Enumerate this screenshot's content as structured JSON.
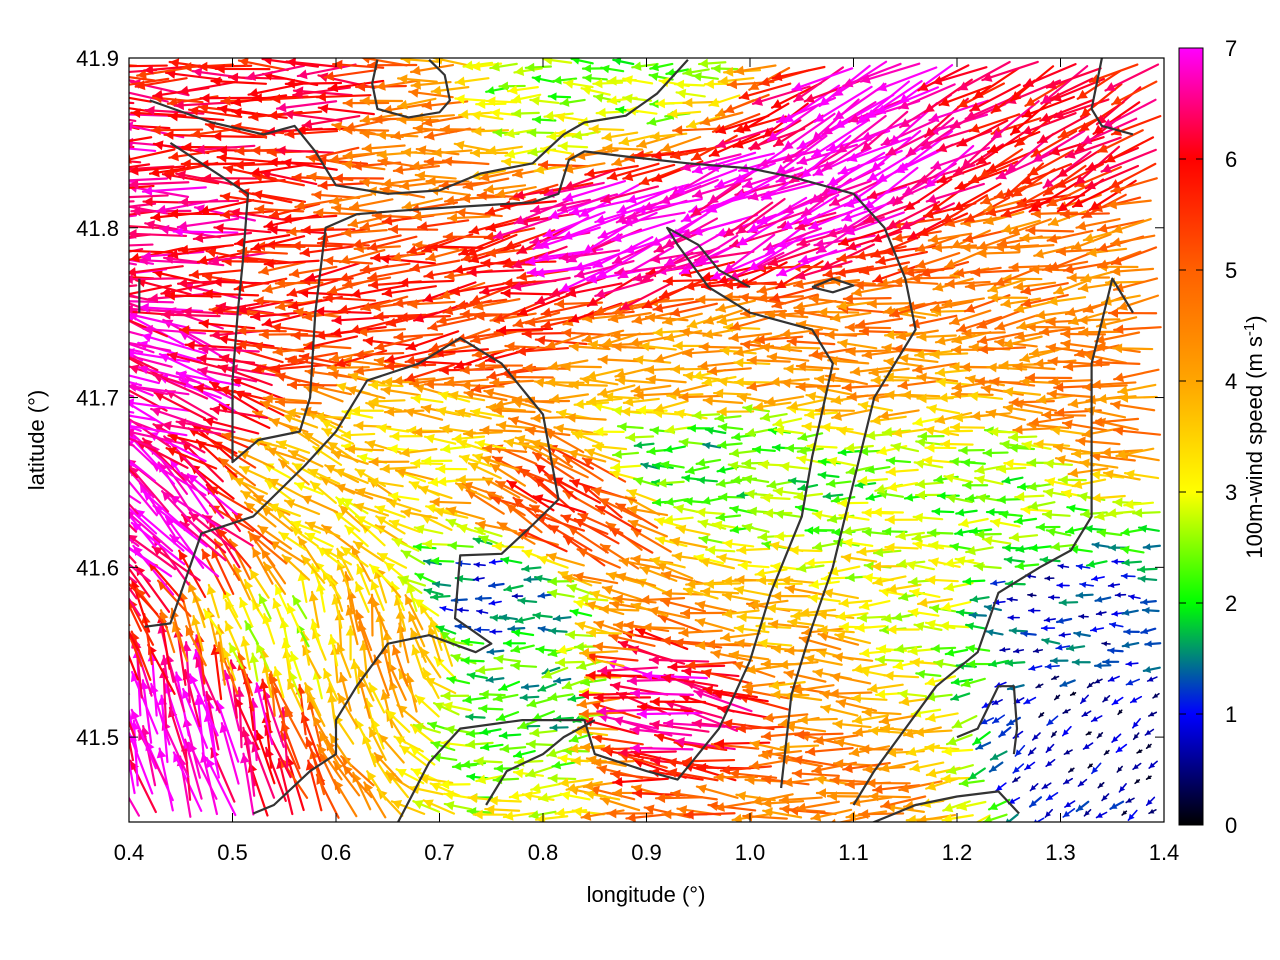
{
  "chart_data": {
    "type": "vector-field",
    "xlabel": "longitude (°)",
    "ylabel": "latitude (°)",
    "xlim": [
      0.4,
      1.4
    ],
    "ylim": [
      41.45,
      41.9
    ],
    "x_ticks": [
      {
        "value": 0.4,
        "label": "0.4"
      },
      {
        "value": 0.5,
        "label": "0.5"
      },
      {
        "value": 0.6,
        "label": "0.6"
      },
      {
        "value": 0.7,
        "label": "0.7"
      },
      {
        "value": 0.8,
        "label": "0.8"
      },
      {
        "value": 0.9,
        "label": "0.9"
      },
      {
        "value": 1.0,
        "label": "1.0"
      },
      {
        "value": 1.1,
        "label": "1.1"
      },
      {
        "value": 1.2,
        "label": "1.2"
      },
      {
        "value": 1.3,
        "label": "1.3"
      },
      {
        "value": 1.4,
        "label": "1.4"
      }
    ],
    "y_ticks": [
      {
        "value": 41.5,
        "label": "41.5"
      },
      {
        "value": 41.6,
        "label": "41.6"
      },
      {
        "value": 41.7,
        "label": "41.7"
      },
      {
        "value": 41.8,
        "label": "41.8"
      },
      {
        "value": 41.9,
        "label": "41.9"
      }
    ],
    "colorbar": {
      "label": "100m-wind speed (m s-1)",
      "label_main": "100m-wind speed (m s",
      "label_sup": "-1",
      "label_close": ")",
      "range": [
        0,
        7
      ],
      "ticks": [
        {
          "value": 0,
          "label": "0"
        },
        {
          "value": 1,
          "label": "1"
        },
        {
          "value": 2,
          "label": "2"
        },
        {
          "value": 3,
          "label": "3"
        },
        {
          "value": 4,
          "label": "4"
        },
        {
          "value": 5,
          "label": "5"
        },
        {
          "value": 6,
          "label": "6"
        },
        {
          "value": 7,
          "label": "7"
        }
      ],
      "palette": [
        {
          "value": 0,
          "color": "#000000"
        },
        {
          "value": 1,
          "color": "#0000ff"
        },
        {
          "value": 1.5,
          "color": "#008080"
        },
        {
          "value": 2,
          "color": "#00ff00"
        },
        {
          "value": 3,
          "color": "#ffff00"
        },
        {
          "value": 4,
          "color": "#ffa500"
        },
        {
          "value": 5,
          "color": "#ff6000"
        },
        {
          "value": 6,
          "color": "#ff0000"
        },
        {
          "value": 7,
          "color": "#ff00ff"
        }
      ]
    },
    "wind_regions": [
      {
        "lon": 0.45,
        "lat": 41.8,
        "speed": 6.5,
        "dir_deg": 180
      },
      {
        "lon": 0.45,
        "lat": 41.7,
        "speed": 6.8,
        "dir_deg": 160
      },
      {
        "lon": 0.45,
        "lat": 41.62,
        "speed": 7.0,
        "dir_deg": 135
      },
      {
        "lon": 0.47,
        "lat": 41.5,
        "speed": 6.9,
        "dir_deg": 105
      },
      {
        "lon": 0.6,
        "lat": 41.88,
        "speed": 6.0,
        "dir_deg": 180
      },
      {
        "lon": 0.7,
        "lat": 41.86,
        "speed": 4.5,
        "dir_deg": 180
      },
      {
        "lon": 0.8,
        "lat": 41.88,
        "speed": 2.5,
        "dir_deg": 180
      },
      {
        "lon": 0.9,
        "lat": 41.89,
        "speed": 2.5,
        "dir_deg": 180
      },
      {
        "lon": 0.62,
        "lat": 41.76,
        "speed": 5.5,
        "dir_deg": 185
      },
      {
        "lon": 0.75,
        "lat": 41.74,
        "speed": 5.5,
        "dir_deg": 190
      },
      {
        "lon": 0.9,
        "lat": 41.8,
        "speed": 7.0,
        "dir_deg": 200
      },
      {
        "lon": 1.05,
        "lat": 41.82,
        "speed": 7.0,
        "dir_deg": 205
      },
      {
        "lon": 1.15,
        "lat": 41.86,
        "speed": 7.0,
        "dir_deg": 210
      },
      {
        "lon": 1.3,
        "lat": 41.86,
        "speed": 6.0,
        "dir_deg": 210
      },
      {
        "lon": 1.3,
        "lat": 41.78,
        "speed": 4.5,
        "dir_deg": 190
      },
      {
        "lon": 1.1,
        "lat": 41.73,
        "speed": 4.5,
        "dir_deg": 180
      },
      {
        "lon": 0.95,
        "lat": 41.72,
        "speed": 4.0,
        "dir_deg": 185
      },
      {
        "lon": 0.7,
        "lat": 41.68,
        "speed": 3.5,
        "dir_deg": 175
      },
      {
        "lon": 0.6,
        "lat": 41.64,
        "speed": 3.5,
        "dir_deg": 150
      },
      {
        "lon": 0.95,
        "lat": 41.66,
        "speed": 2.0,
        "dir_deg": 180
      },
      {
        "lon": 1.05,
        "lat": 41.65,
        "speed": 2.3,
        "dir_deg": 180
      },
      {
        "lon": 0.85,
        "lat": 41.63,
        "speed": 5.5,
        "dir_deg": 150
      },
      {
        "lon": 0.76,
        "lat": 41.58,
        "speed": 1.2,
        "dir_deg": 180
      },
      {
        "lon": 0.65,
        "lat": 41.55,
        "speed": 4.0,
        "dir_deg": 100
      },
      {
        "lon": 0.55,
        "lat": 41.55,
        "speed": 3.0,
        "dir_deg": 110
      },
      {
        "lon": 0.8,
        "lat": 41.52,
        "speed": 2.0,
        "dir_deg": 190
      },
      {
        "lon": 0.95,
        "lat": 41.52,
        "speed": 6.5,
        "dir_deg": 170
      },
      {
        "lon": 1.05,
        "lat": 41.56,
        "speed": 4.0,
        "dir_deg": 175
      },
      {
        "lon": 1.15,
        "lat": 41.58,
        "speed": 3.0,
        "dir_deg": 180
      },
      {
        "lon": 1.1,
        "lat": 41.48,
        "speed": 4.5,
        "dir_deg": 180
      },
      {
        "lon": 1.3,
        "lat": 41.57,
        "speed": 1.0,
        "dir_deg": 180
      },
      {
        "lon": 1.33,
        "lat": 41.5,
        "speed": 0.6,
        "dir_deg": 220
      },
      {
        "lon": 1.25,
        "lat": 41.64,
        "speed": 2.5,
        "dir_deg": 180
      },
      {
        "lon": 1.36,
        "lat": 41.7,
        "speed": 4.5,
        "dir_deg": 180
      }
    ],
    "contours": [
      [
        [
          0.42,
          41.875
        ],
        [
          0.48,
          41.862
        ],
        [
          0.53,
          41.855
        ],
        [
          0.56,
          41.86
        ],
        [
          0.58,
          41.845
        ],
        [
          0.6,
          41.825
        ],
        [
          0.65,
          41.82
        ],
        [
          0.7,
          41.822
        ],
        [
          0.74,
          41.832
        ],
        [
          0.79,
          41.838
        ],
        [
          0.82,
          41.855
        ],
        [
          0.84,
          41.862
        ],
        [
          0.88,
          41.866
        ],
        [
          0.91,
          41.879
        ],
        [
          0.94,
          41.899
        ]
      ],
      [
        [
          0.69,
          41.899
        ],
        [
          0.705,
          41.89
        ],
        [
          0.71,
          41.875
        ],
        [
          0.7,
          41.868
        ],
        [
          0.67,
          41.865
        ],
        [
          0.64,
          41.87
        ],
        [
          0.635,
          41.885
        ],
        [
          0.64,
          41.899
        ]
      ],
      [
        [
          0.44,
          41.85
        ],
        [
          0.49,
          41.83
        ],
        [
          0.515,
          41.82
        ],
        [
          0.51,
          41.78
        ],
        [
          0.505,
          41.75
        ],
        [
          0.5,
          41.71
        ],
        [
          0.5,
          41.662
        ],
        [
          0.525,
          41.675
        ],
        [
          0.565,
          41.68
        ],
        [
          0.575,
          41.7
        ],
        [
          0.58,
          41.75
        ],
        [
          0.59,
          41.8
        ],
        [
          0.62,
          41.808
        ],
        [
          0.66,
          41.81
        ],
        [
          0.71,
          41.812
        ],
        [
          0.79,
          41.815
        ],
        [
          0.815,
          41.82
        ],
        [
          0.825,
          41.84
        ],
        [
          0.84,
          41.845
        ],
        [
          0.88,
          41.842
        ],
        [
          0.94,
          41.838
        ],
        [
          1.0,
          41.835
        ],
        [
          1.04,
          41.83
        ],
        [
          1.1,
          41.82
        ],
        [
          1.13,
          41.8
        ],
        [
          1.15,
          41.77
        ],
        [
          1.16,
          41.74
        ],
        [
          1.14,
          41.72
        ],
        [
          1.12,
          41.7
        ],
        [
          1.1,
          41.65
        ],
        [
          1.08,
          41.6
        ],
        [
          1.06,
          41.565
        ],
        [
          1.04,
          41.525
        ],
        [
          1.03,
          41.47
        ]
      ],
      [
        [
          0.415,
          41.565
        ],
        [
          0.44,
          41.567
        ],
        [
          0.47,
          41.62
        ],
        [
          0.52,
          41.63
        ],
        [
          0.57,
          41.66
        ],
        [
          0.6,
          41.68
        ],
        [
          0.63,
          41.71
        ],
        [
          0.68,
          41.72
        ],
        [
          0.72,
          41.735
        ],
        [
          0.76,
          41.72
        ],
        [
          0.8,
          41.69
        ],
        [
          0.815,
          41.64
        ],
        [
          0.79,
          41.625
        ],
        [
          0.76,
          41.608
        ],
        [
          0.72,
          41.607
        ],
        [
          0.715,
          41.57
        ],
        [
          0.75,
          41.555
        ],
        [
          0.735,
          41.55
        ],
        [
          0.69,
          41.56
        ],
        [
          0.65,
          41.555
        ],
        [
          0.62,
          41.53
        ],
        [
          0.6,
          41.51
        ],
        [
          0.6,
          41.49
        ],
        [
          0.575,
          41.48
        ],
        [
          0.54,
          41.46
        ],
        [
          0.52,
          41.455
        ]
      ],
      [
        [
          0.66,
          41.45
        ],
        [
          0.69,
          41.485
        ],
        [
          0.72,
          41.505
        ],
        [
          0.78,
          41.51
        ],
        [
          0.84,
          41.51
        ],
        [
          0.85,
          41.49
        ],
        [
          0.9,
          41.48
        ],
        [
          0.93,
          41.475
        ],
        [
          0.97,
          41.505
        ],
        [
          1.0,
          41.545
        ],
        [
          1.02,
          41.585
        ],
        [
          1.05,
          41.63
        ],
        [
          1.06,
          41.665
        ],
        [
          1.08,
          41.72
        ],
        [
          1.06,
          41.74
        ],
        [
          1.0,
          41.75
        ],
        [
          0.96,
          41.765
        ],
        [
          0.93,
          41.79
        ],
        [
          0.92,
          41.8
        ],
        [
          0.95,
          41.79
        ],
        [
          0.97,
          41.775
        ],
        [
          1.0,
          41.765
        ]
      ],
      [
        [
          0.745,
          41.46
        ],
        [
          0.765,
          41.48
        ],
        [
          0.8,
          41.49
        ],
        [
          0.82,
          41.5
        ],
        [
          0.85,
          41.51
        ]
      ],
      [
        [
          1.1,
          41.445
        ],
        [
          1.16,
          41.46
        ],
        [
          1.2,
          41.465
        ],
        [
          1.24,
          41.468
        ],
        [
          1.26,
          41.455
        ]
      ],
      [
        [
          1.2,
          41.5
        ],
        [
          1.22,
          41.505
        ],
        [
          1.24,
          41.53
        ],
        [
          1.255,
          41.53
        ],
        [
          1.258,
          41.505
        ],
        [
          1.255,
          41.49
        ]
      ],
      [
        [
          1.37,
          41.855
        ],
        [
          1.34,
          41.86
        ],
        [
          1.33,
          41.87
        ],
        [
          1.34,
          41.9
        ]
      ],
      [
        [
          1.37,
          41.75
        ],
        [
          1.35,
          41.77
        ],
        [
          1.33,
          41.72
        ],
        [
          1.33,
          41.63
        ],
        [
          1.31,
          41.61
        ],
        [
          1.28,
          41.6
        ],
        [
          1.24,
          41.585
        ],
        [
          1.22,
          41.55
        ],
        [
          1.18,
          41.53
        ],
        [
          1.15,
          41.505
        ],
        [
          1.12,
          41.48
        ],
        [
          1.1,
          41.46
        ]
      ],
      [
        [
          1.06,
          41.765
        ],
        [
          1.08,
          41.762
        ],
        [
          1.1,
          41.766
        ],
        [
          1.08,
          41.77
        ],
        [
          1.06,
          41.765
        ]
      ],
      [
        [
          0.41,
          41.77
        ],
        [
          0.41,
          41.75
        ]
      ]
    ]
  }
}
